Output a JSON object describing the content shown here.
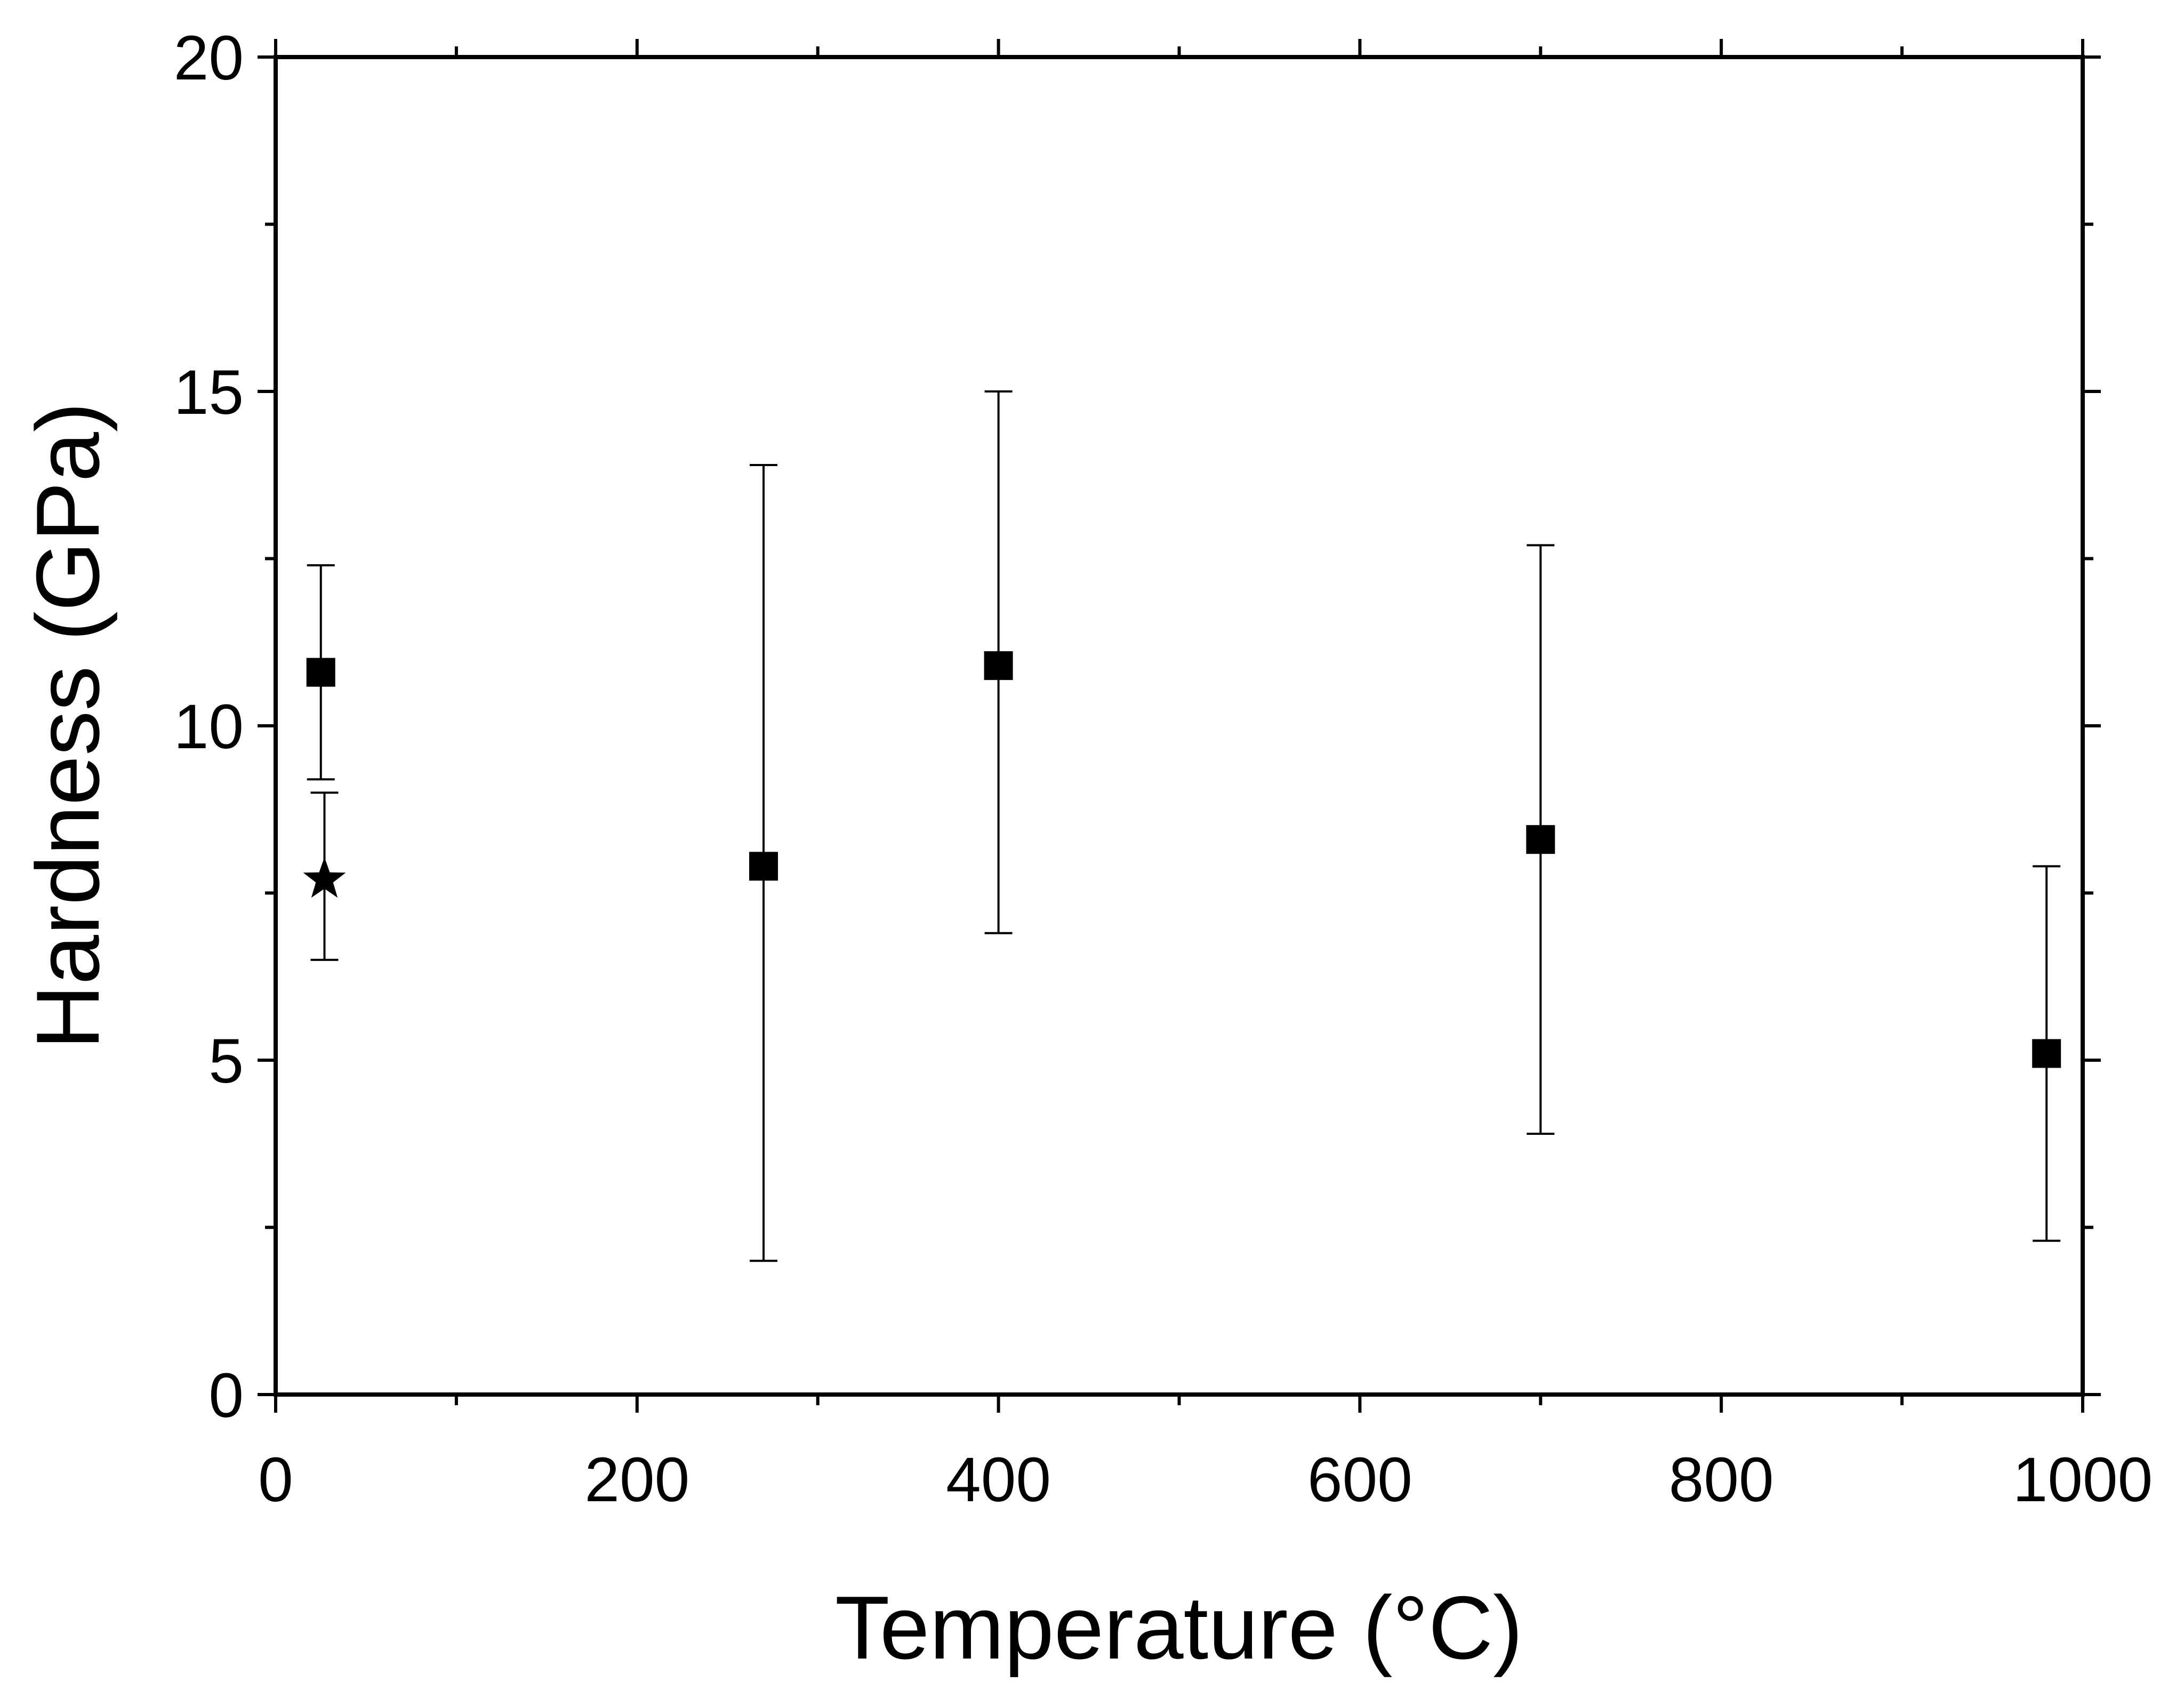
{
  "chart_data": {
    "type": "scatter",
    "xlabel": "Temperature (°C)",
    "ylabel": "Hardness (GPa)",
    "xlim": [
      0,
      1000
    ],
    "ylim": [
      0,
      20
    ],
    "x_ticks": [
      0,
      200,
      400,
      600,
      800,
      1000
    ],
    "y_ticks": [
      0,
      5,
      10,
      15,
      20
    ],
    "x_tick_labels": [
      "0",
      "200",
      "400",
      "600",
      "800",
      "1000"
    ],
    "y_tick_labels": [
      "0",
      "5",
      "10",
      "15",
      "20"
    ],
    "x_minor_step": 100,
    "y_minor_step": 2.5,
    "grid": false,
    "series": [
      {
        "marker": "square",
        "color": "#000000",
        "points": [
          {
            "x": 25,
            "y": 10.8,
            "err_low": 9.2,
            "err_high": 12.4
          },
          {
            "x": 270,
            "y": 7.9,
            "err_low": 2.0,
            "err_high": 13.9
          },
          {
            "x": 400,
            "y": 10.9,
            "err_low": 6.9,
            "err_high": 15.0
          },
          {
            "x": 700,
            "y": 8.3,
            "err_low": 3.9,
            "err_high": 12.7
          },
          {
            "x": 980,
            "y": 5.1,
            "err_low": 2.3,
            "err_high": 7.9
          }
        ]
      },
      {
        "marker": "star",
        "color": "#000000",
        "points": [
          {
            "x": 27,
            "y": 7.7,
            "err_low": 6.5,
            "err_high": 9.0
          }
        ]
      }
    ]
  }
}
